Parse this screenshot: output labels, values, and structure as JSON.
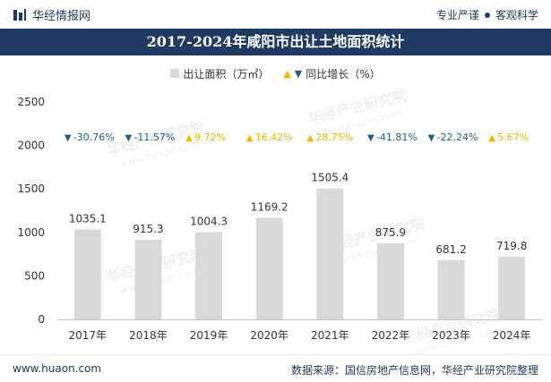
{
  "brand": {
    "name": "华经情报网"
  },
  "tagline": {
    "left": "专业严谨",
    "right": "客观科学"
  },
  "watermark": {
    "cn": "华经产业研究院",
    "en": "www.huaon.com"
  },
  "footer": {
    "url": "www.huaon.com",
    "source": "数据来源：国信房地产信息网，华经产业研究院整理"
  },
  "colors": {
    "bar": "#d9d9d9",
    "up": "#f5b800",
    "down": "#1f5f82",
    "title_bg": "#1f3a63"
  },
  "chart_data": {
    "type": "bar",
    "title": "2017-2024年咸阳市出让土地面积统计",
    "categories": [
      "2017年",
      "2018年",
      "2019年",
      "2020年",
      "2021年",
      "2022年",
      "2023年",
      "2024年"
    ],
    "series": [
      {
        "name": "出让面积（万㎡）",
        "values": [
          1035.1,
          915.3,
          1004.3,
          1169.2,
          1505.4,
          875.9,
          681.2,
          719.8
        ],
        "labels": [
          "1035.1",
          "915.3",
          "1004.3",
          "1169.2",
          "1505.4",
          "875.9",
          "681.2",
          "719.8"
        ]
      },
      {
        "name": "同比增长（%）",
        "values": [
          -30.76,
          -11.57,
          9.72,
          16.42,
          28.75,
          -41.81,
          -22.24,
          5.67
        ],
        "labels": [
          "-30.76%",
          "-11.57%",
          "9.72%",
          "16.42%",
          "28.75%",
          "-41.81%",
          "-22.24%",
          "5.67%"
        ]
      }
    ],
    "yticks": [
      "0",
      "500",
      "1000",
      "1500",
      "2000",
      "2500"
    ],
    "ylim": [
      0,
      2500
    ],
    "grid": false,
    "legend": "top-center"
  }
}
